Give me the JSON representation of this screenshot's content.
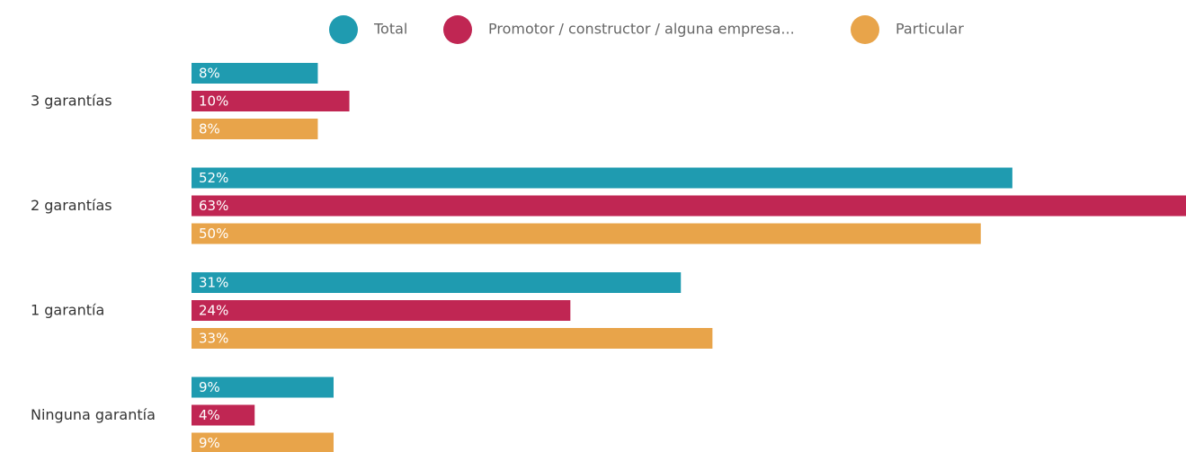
{
  "chart_data": {
    "type": "hbar",
    "categories": [
      "3 garantías",
      "2 garantías",
      "1 garantía",
      "Ninguna garantía"
    ],
    "series": [
      {
        "name": "Total",
        "color": "#1f9bb0",
        "values": [
          8,
          52,
          31,
          9
        ],
        "value_labels": [
          "8%",
          "52%",
          "31%",
          "9%"
        ]
      },
      {
        "name": "Promotor / constructor / alguna empresa...",
        "color": "#c02653",
        "values": [
          10,
          63,
          24,
          4
        ],
        "value_labels": [
          "10%",
          "63%",
          "24%",
          "4%"
        ]
      },
      {
        "name": "Particular",
        "color": "#e8a44a",
        "values": [
          8,
          50,
          33,
          9
        ],
        "value_labels": [
          "8%",
          "50%",
          "33%",
          "9%"
        ]
      }
    ],
    "legend": "top"
  }
}
